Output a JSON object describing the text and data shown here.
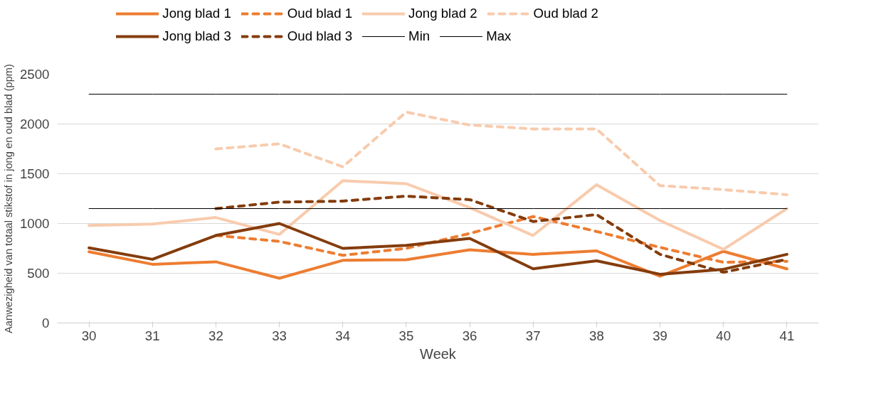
{
  "chart_data": {
    "type": "line",
    "xlabel": "Week",
    "ylabel": "Aanwezigheid van totaal stikstof in jong en oud blad (ppm)",
    "categories": [
      "30",
      "31",
      "32",
      "33",
      "34",
      "35",
      "36",
      "37",
      "38",
      "39",
      "40",
      "41"
    ],
    "ylim": [
      0,
      2500
    ],
    "yticks": [
      0,
      500,
      1000,
      1500,
      2000,
      2500
    ],
    "grid": "y",
    "legend": "top",
    "series": [
      {
        "name": "Jong blad 1",
        "color": "#ed7d31",
        "line_style": "solid",
        "values": [
          716,
          590,
          615,
          450,
          630,
          635,
          735,
          690,
          725,
          470,
          720,
          545
        ]
      },
      {
        "name": "Oud blad 1",
        "color": "#ed7d31",
        "line_style": "dashed",
        "values": [
          null,
          null,
          880,
          820,
          680,
          750,
          900,
          1070,
          920,
          760,
          610,
          620
        ]
      },
      {
        "name": "Jong blad 2",
        "color": "#f8cbad",
        "line_style": "solid",
        "values": [
          980,
          995,
          1060,
          890,
          1430,
          1400,
          1160,
          880,
          1390,
          1030,
          740,
          1150
        ]
      },
      {
        "name": "Oud blad 2",
        "color": "#f8cbad",
        "line_style": "dashed",
        "values": [
          null,
          null,
          1750,
          1800,
          1570,
          2120,
          1990,
          1950,
          1950,
          1380,
          1340,
          1290
        ]
      },
      {
        "name": "Jong blad 3",
        "color": "#843c0c",
        "line_style": "solid",
        "values": [
          755,
          640,
          880,
          1000,
          750,
          780,
          850,
          545,
          625,
          490,
          540,
          690
        ]
      },
      {
        "name": "Oud blad 3",
        "color": "#843c0c",
        "line_style": "dashed",
        "values": [
          null,
          null,
          1150,
          1215,
          1225,
          1275,
          1240,
          1020,
          1090,
          690,
          510,
          640
        ]
      },
      {
        "name": "Min",
        "color": "#000000",
        "line_style": "solid",
        "values": [
          1150,
          1150,
          1150,
          1150,
          1150,
          1150,
          1150,
          1150,
          1150,
          1150,
          1150,
          1150
        ]
      },
      {
        "name": "Max",
        "color": "#000000",
        "line_style": "solid",
        "values": [
          2300,
          2300,
          2300,
          2300,
          2300,
          2300,
          2300,
          2300,
          2300,
          2300,
          2300,
          2300
        ]
      }
    ]
  }
}
